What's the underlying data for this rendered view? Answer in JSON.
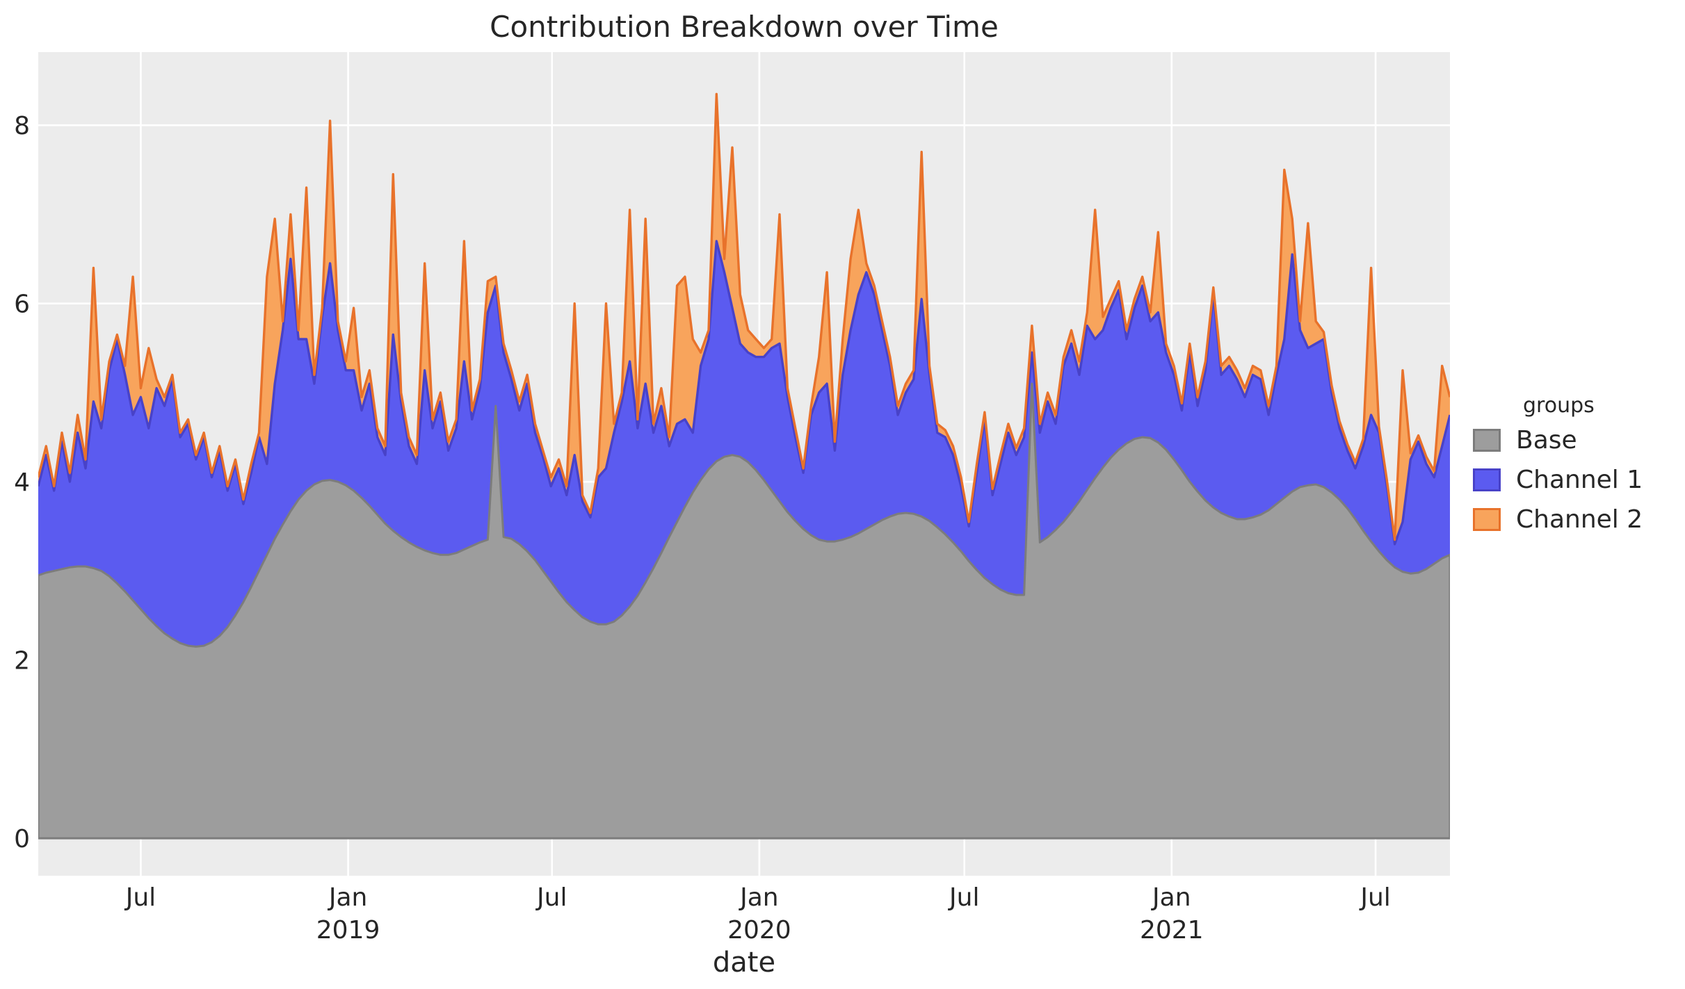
{
  "title": "Contribution Breakdown over Time",
  "axes": {
    "x_label": "date",
    "y_ticks": [
      0,
      2,
      4,
      6,
      8
    ],
    "x_ticks": [
      {
        "label": "Jul",
        "year": "",
        "pos": 13.0
      },
      {
        "label": "Jan",
        "year": "2019",
        "pos": 39.29
      },
      {
        "label": "Jul",
        "year": "",
        "pos": 65.14
      },
      {
        "label": "Jan",
        "year": "2020",
        "pos": 91.43
      },
      {
        "label": "Jul",
        "year": "",
        "pos": 117.43
      },
      {
        "label": "Jan",
        "year": "2021",
        "pos": 143.71
      },
      {
        "label": "Jul",
        "year": "",
        "pos": 169.57
      }
    ]
  },
  "legend": {
    "title": "groups",
    "entries": [
      {
        "label": "Base",
        "fill": "#9D9D9D",
        "edge": "#7C7C7C"
      },
      {
        "label": "Channel 1",
        "fill": "#5B5BF0",
        "edge": "#4842C8"
      },
      {
        "label": "Channel 2",
        "fill": "#F8A45C",
        "edge": "#E8722B"
      }
    ]
  },
  "colors": {
    "plot_bg": "#ECECEC",
    "grid": "#FFFFFF",
    "text": "#262626"
  },
  "chart_data": {
    "type": "area",
    "stacked": true,
    "title": "Contribution Breakdown over Time",
    "xlabel": "date",
    "ylabel": "",
    "legend_title": "groups",
    "legend_position": "right",
    "grid": true,
    "ylim": [
      -0.42,
      8.82
    ],
    "x_dates": [
      "2018-04-01",
      "2018-04-08",
      "2018-04-15",
      "2018-04-22",
      "2018-04-29",
      "2018-05-06",
      "2018-05-13",
      "2018-05-20",
      "2018-05-27",
      "2018-06-03",
      "2018-06-10",
      "2018-06-17",
      "2018-06-24",
      "2018-07-01",
      "2018-07-08",
      "2018-07-15",
      "2018-07-22",
      "2018-07-29",
      "2018-08-05",
      "2018-08-12",
      "2018-08-19",
      "2018-08-26",
      "2018-09-02",
      "2018-09-09",
      "2018-09-16",
      "2018-09-23",
      "2018-09-30",
      "2018-10-07",
      "2018-10-14",
      "2018-10-21",
      "2018-10-28",
      "2018-11-04",
      "2018-11-11",
      "2018-11-18",
      "2018-11-25",
      "2018-12-02",
      "2018-12-09",
      "2018-12-16",
      "2018-12-23",
      "2018-12-30",
      "2019-01-06",
      "2019-01-13",
      "2019-01-20",
      "2019-01-27",
      "2019-02-03",
      "2019-02-10",
      "2019-02-17",
      "2019-02-24",
      "2019-03-03",
      "2019-03-10",
      "2019-03-17",
      "2019-03-24",
      "2019-03-31",
      "2019-04-07",
      "2019-04-14",
      "2019-04-21",
      "2019-04-28",
      "2019-05-05",
      "2019-05-12",
      "2019-05-19",
      "2019-05-26",
      "2019-06-02",
      "2019-06-09",
      "2019-06-16",
      "2019-06-23",
      "2019-06-30",
      "2019-07-07",
      "2019-07-14",
      "2019-07-21",
      "2019-07-28",
      "2019-08-04",
      "2019-08-11",
      "2019-08-18",
      "2019-08-25",
      "2019-09-01",
      "2019-09-08",
      "2019-09-15",
      "2019-09-22",
      "2019-09-29",
      "2019-10-06",
      "2019-10-13",
      "2019-10-20",
      "2019-10-27",
      "2019-11-03",
      "2019-11-10",
      "2019-11-17",
      "2019-11-24",
      "2019-12-01",
      "2019-12-08",
      "2019-12-15",
      "2019-12-22",
      "2019-12-29",
      "2020-01-05",
      "2020-01-12",
      "2020-01-19",
      "2020-01-26",
      "2020-02-02",
      "2020-02-09",
      "2020-02-16",
      "2020-02-23",
      "2020-03-01",
      "2020-03-08",
      "2020-03-15",
      "2020-03-22",
      "2020-03-29",
      "2020-04-05",
      "2020-04-12",
      "2020-04-19",
      "2020-04-26",
      "2020-05-03",
      "2020-05-10",
      "2020-05-17",
      "2020-05-24",
      "2020-05-31",
      "2020-06-07",
      "2020-06-14",
      "2020-06-21",
      "2020-06-28",
      "2020-07-05",
      "2020-07-12",
      "2020-07-19",
      "2020-07-26",
      "2020-08-02",
      "2020-08-09",
      "2020-08-16",
      "2020-08-23",
      "2020-08-30",
      "2020-09-06",
      "2020-09-13",
      "2020-09-20",
      "2020-09-27",
      "2020-10-04",
      "2020-10-11",
      "2020-10-18",
      "2020-10-25",
      "2020-11-01",
      "2020-11-08",
      "2020-11-15",
      "2020-11-22",
      "2020-11-29",
      "2020-12-06",
      "2020-12-13",
      "2020-12-20",
      "2020-12-27",
      "2021-01-03",
      "2021-01-10",
      "2021-01-17",
      "2021-01-24",
      "2021-01-31",
      "2021-02-07",
      "2021-02-14",
      "2021-02-21",
      "2021-02-28",
      "2021-03-07",
      "2021-03-14",
      "2021-03-21",
      "2021-03-28",
      "2021-04-04",
      "2021-04-11",
      "2021-04-18",
      "2021-04-25",
      "2021-05-02",
      "2021-05-09",
      "2021-05-16",
      "2021-05-23",
      "2021-05-30",
      "2021-06-06",
      "2021-06-13",
      "2021-06-20",
      "2021-06-27",
      "2021-07-04",
      "2021-07-11",
      "2021-07-18",
      "2021-07-25",
      "2021-08-01",
      "2021-08-08",
      "2021-08-15",
      "2021-08-22",
      "2021-08-29",
      "2021-09-05"
    ],
    "series": [
      {
        "name": "Base",
        "fill": "#9D9D9D",
        "edge": "#7C7C7C",
        "values": [
          2.95,
          2.98,
          3.0,
          3.02,
          3.04,
          3.05,
          3.05,
          3.03,
          3.0,
          2.94,
          2.86,
          2.77,
          2.67,
          2.57,
          2.47,
          2.38,
          2.3,
          2.24,
          2.19,
          2.16,
          2.15,
          2.16,
          2.2,
          2.27,
          2.37,
          2.5,
          2.65,
          2.82,
          3.0,
          3.18,
          3.36,
          3.52,
          3.67,
          3.8,
          3.9,
          3.97,
          4.01,
          4.02,
          4.0,
          3.96,
          3.9,
          3.82,
          3.73,
          3.63,
          3.53,
          3.45,
          3.38,
          3.32,
          3.27,
          3.23,
          3.2,
          3.18,
          3.18,
          3.2,
          3.24,
          3.28,
          3.32,
          3.35,
          4.85,
          3.38,
          3.36,
          3.3,
          3.22,
          3.12,
          3.0,
          2.88,
          2.76,
          2.65,
          2.56,
          2.48,
          2.43,
          2.4,
          2.4,
          2.43,
          2.5,
          2.6,
          2.72,
          2.87,
          3.03,
          3.2,
          3.38,
          3.55,
          3.72,
          3.88,
          4.02,
          4.14,
          4.23,
          4.28,
          4.3,
          4.28,
          4.22,
          4.13,
          4.02,
          3.9,
          3.78,
          3.66,
          3.56,
          3.47,
          3.4,
          3.35,
          3.33,
          3.33,
          3.35,
          3.38,
          3.42,
          3.47,
          3.52,
          3.57,
          3.61,
          3.64,
          3.65,
          3.64,
          3.61,
          3.56,
          3.49,
          3.41,
          3.32,
          3.22,
          3.11,
          3.01,
          2.92,
          2.85,
          2.79,
          2.75,
          2.73,
          2.73,
          5.1,
          3.32,
          3.38,
          3.46,
          3.55,
          3.66,
          3.78,
          3.91,
          4.04,
          4.16,
          4.27,
          4.36,
          4.43,
          4.48,
          4.5,
          4.49,
          4.44,
          4.36,
          4.25,
          4.13,
          4.0,
          3.89,
          3.79,
          3.71,
          3.65,
          3.61,
          3.58,
          3.58,
          3.6,
          3.63,
          3.68,
          3.75,
          3.82,
          3.89,
          3.94,
          3.96,
          3.97,
          3.94,
          3.88,
          3.8,
          3.7,
          3.58,
          3.45,
          3.33,
          3.22,
          3.12,
          3.04,
          2.99,
          2.97,
          2.98,
          3.02,
          3.08,
          3.14,
          3.18
        ]
      },
      {
        "name": "Channel 1",
        "fill": "#5B5BF0",
        "edge": "#4842C8",
        "values": [
          1.0,
          1.32,
          0.9,
          1.43,
          0.96,
          1.5,
          1.1,
          1.87,
          1.6,
          2.31,
          2.74,
          2.43,
          2.08,
          2.38,
          2.13,
          2.67,
          2.55,
          2.91,
          2.31,
          2.49,
          2.1,
          2.34,
          1.85,
          2.08,
          1.53,
          1.7,
          1.1,
          1.28,
          1.5,
          1.02,
          1.74,
          2.18,
          2.83,
          1.8,
          1.7,
          1.13,
          1.84,
          2.43,
          1.7,
          1.29,
          1.35,
          0.98,
          1.37,
          0.87,
          0.77,
          2.2,
          1.52,
          1.08,
          0.93,
          2.02,
          1.4,
          1.72,
          1.17,
          1.4,
          2.11,
          1.42,
          1.73,
          2.55,
          1.35,
          2.07,
          1.79,
          1.5,
          1.88,
          1.43,
          1.28,
          1.07,
          1.39,
          1.2,
          1.74,
          1.3,
          1.17,
          1.65,
          1.75,
          2.12,
          2.4,
          2.75,
          1.88,
          2.23,
          1.52,
          1.65,
          1.02,
          1.1,
          0.98,
          0.67,
          1.28,
          1.46,
          2.47,
          2.07,
          1.65,
          1.27,
          1.23,
          1.27,
          1.38,
          1.6,
          1.77,
          1.29,
          0.94,
          0.63,
          1.35,
          1.65,
          1.77,
          1.02,
          1.85,
          2.32,
          2.68,
          2.88,
          2.58,
          2.13,
          1.69,
          1.11,
          1.35,
          1.51,
          2.44,
          1.64,
          1.06,
          1.09,
          0.98,
          0.73,
          0.39,
          1.09,
          1.78,
          1.0,
          1.41,
          1.8,
          1.57,
          1.77,
          0.35,
          1.23,
          1.52,
          1.19,
          1.75,
          1.89,
          1.42,
          1.84,
          1.56,
          1.54,
          1.68,
          1.79,
          1.17,
          1.47,
          1.7,
          1.31,
          1.46,
          1.09,
          0.95,
          0.67,
          1.45,
          0.96,
          1.46,
          2.39,
          1.55,
          1.69,
          1.57,
          1.37,
          1.6,
          1.52,
          1.07,
          1.45,
          1.78,
          2.66,
          1.76,
          1.54,
          1.58,
          1.66,
          1.12,
          0.8,
          0.65,
          0.57,
          0.95,
          1.42,
          1.33,
          0.83,
          0.26,
          0.56,
          1.28,
          1.47,
          1.18,
          0.97,
          1.26,
          1.57
        ]
      },
      {
        "name": "Channel 2",
        "fill": "#F8A45C",
        "edge": "#E8722B",
        "values": [
          0.1,
          0.1,
          0.05,
          0.1,
          0.1,
          0.2,
          0.1,
          1.5,
          0.1,
          0.1,
          0.05,
          0.1,
          1.55,
          0.1,
          0.9,
          0.1,
          0.1,
          0.05,
          0.05,
          0.05,
          0.05,
          0.05,
          0.05,
          0.05,
          0.05,
          0.05,
          0.05,
          0.1,
          0.05,
          2.1,
          1.85,
          0.1,
          0.5,
          0.1,
          1.7,
          0.1,
          0.1,
          1.6,
          0.1,
          0.1,
          0.7,
          0.15,
          0.15,
          0.1,
          0.1,
          1.8,
          0.1,
          0.1,
          0.1,
          1.2,
          0.1,
          0.1,
          0.1,
          0.1,
          1.35,
          0.1,
          0.1,
          0.35,
          0.1,
          0.1,
          0.1,
          0.1,
          0.1,
          0.1,
          0.07,
          0.1,
          0.1,
          0.1,
          1.7,
          0.07,
          0.05,
          0.1,
          1.85,
          0.1,
          0.1,
          1.7,
          0.1,
          1.85,
          0.1,
          0.2,
          0.1,
          1.55,
          1.6,
          1.05,
          0.15,
          0.1,
          1.65,
          0.15,
          1.8,
          0.55,
          0.25,
          0.2,
          0.1,
          0.1,
          1.45,
          0.1,
          0.1,
          0.05,
          0.1,
          0.4,
          1.25,
          0.1,
          0.4,
          0.8,
          0.95,
          0.1,
          0.1,
          0.1,
          0.1,
          0.1,
          0.1,
          0.1,
          1.65,
          0.1,
          0.1,
          0.08,
          0.1,
          0.1,
          0.05,
          0.1,
          0.08,
          0.07,
          0.1,
          0.1,
          0.08,
          0.1,
          0.3,
          0.1,
          0.1,
          0.1,
          0.1,
          0.15,
          0.15,
          0.15,
          1.45,
          0.15,
          0.1,
          0.1,
          0.1,
          0.1,
          0.1,
          0.1,
          0.9,
          0.1,
          0.1,
          0.08,
          0.1,
          0.1,
          0.1,
          0.08,
          0.1,
          0.1,
          0.1,
          0.1,
          0.1,
          0.1,
          0.1,
          0.1,
          1.9,
          0.4,
          0.1,
          1.4,
          0.25,
          0.08,
          0.08,
          0.08,
          0.07,
          0.07,
          0.08,
          1.65,
          0.07,
          0.07,
          0.05,
          1.7,
          0.07,
          0.07,
          0.08,
          0.07,
          0.9,
          0.2
        ]
      }
    ]
  }
}
